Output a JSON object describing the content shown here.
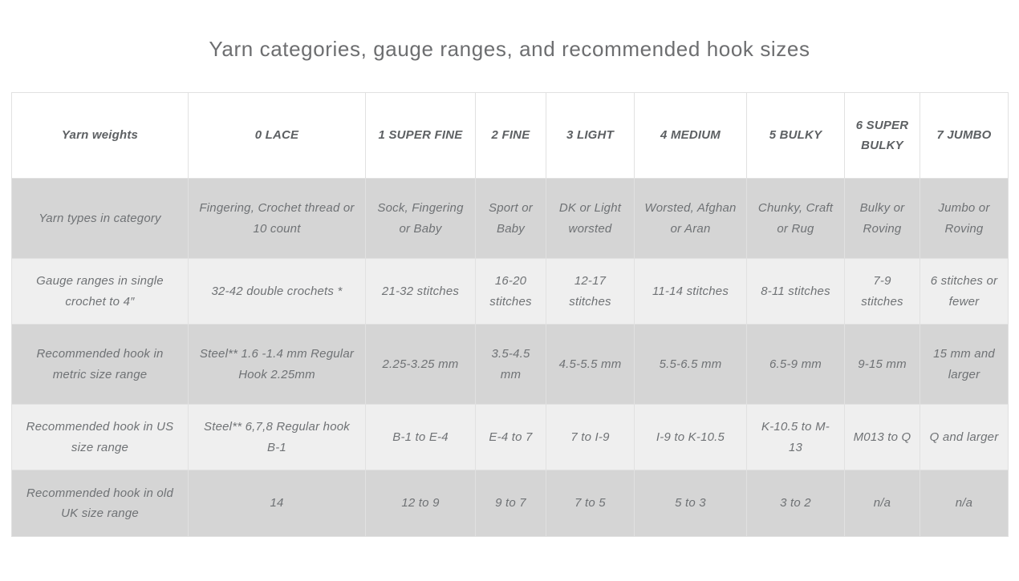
{
  "colors": {
    "background": "#ffffff",
    "row_dark": "#d5d5d5",
    "row_light": "#efefef",
    "border": "#e1e1e1",
    "title_text": "#6d6e70",
    "header_text": "#5d6063",
    "cell_text": "#6f7275"
  },
  "chart_data": {
    "type": "table",
    "title": "Yarn categories, gauge ranges, and recommended hook sizes",
    "columns": [
      "Yarn weights",
      "0 LACE",
      "1 SUPER FINE",
      "2 FINE",
      "3 LIGHT",
      "4 MEDIUM",
      "5 BULKY",
      "6 SUPER BULKY",
      "7 JUMBO"
    ],
    "rows": [
      {
        "label": "Yarn types in category",
        "values": [
          "Fingering, Crochet thread or 10 count",
          "Sock, Fingering or Baby",
          "Sport or Baby",
          "DK or Light worsted",
          "Worsted, Afghan or Aran",
          "Chunky, Craft or Rug",
          "Bulky or Roving",
          "Jumbo or Roving"
        ]
      },
      {
        "label": "Gauge ranges in single crochet to 4″",
        "values": [
          "32-42 double crochets *",
          "21-32 stitches",
          "16-20 stitches",
          "12-17 stitches",
          "11-14 stitches",
          "8-11 stitches",
          "7-9 stitches",
          "6 stitches or fewer"
        ]
      },
      {
        "label": "Recommended hook in metric size range",
        "values": [
          "Steel** 1.6 -1.4 mm Regular Hook 2.25mm",
          "2.25-3.25 mm",
          "3.5-4.5 mm",
          "4.5-5.5 mm",
          "5.5-6.5 mm",
          "6.5-9 mm",
          "9-15 mm",
          "15 mm and larger"
        ]
      },
      {
        "label": "Recommended hook in US size range",
        "values": [
          "Steel** 6,7,8 Regular hook B-1",
          "B-1 to E-4",
          "E-4 to 7",
          "7 to I-9",
          "I-9 to K-10.5",
          "K-10.5 to M-13",
          "M013 to Q",
          "Q and larger"
        ]
      },
      {
        "label": "Recommended hook in old UK size range",
        "values": [
          "14",
          "12 to 9",
          "9 to 7",
          "7 to 5",
          "5 to 3",
          "3 to 2",
          "n/a",
          "n/a"
        ]
      }
    ]
  }
}
